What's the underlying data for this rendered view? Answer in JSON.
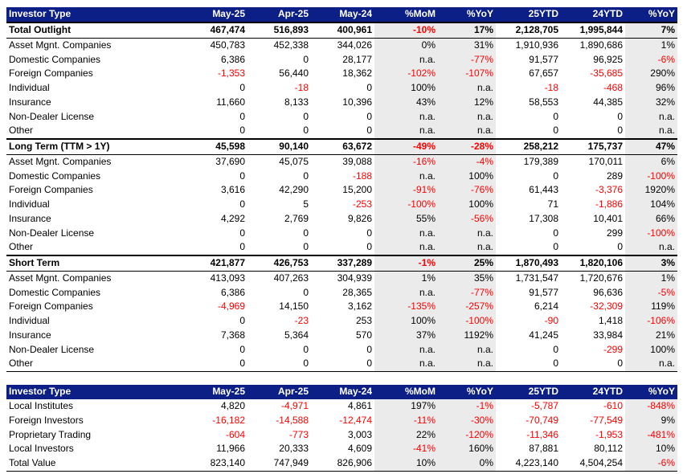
{
  "main_table": {
    "headers": [
      "Investor Type",
      "May-25",
      "Apr-25",
      "May-24",
      "%MoM",
      "%YoY",
      "25YTD",
      "24YTD",
      "%YoY"
    ],
    "rows": [
      {
        "section": true,
        "cells": [
          "Total Outlight",
          "467,474",
          "516,893",
          "400,961",
          "-10%",
          "17%",
          "2,128,705",
          "1,995,844",
          "7%"
        ]
      },
      {
        "cells": [
          "Asset Mgnt. Companies",
          "450,783",
          "452,338",
          "344,026",
          "0%",
          "31%",
          "1,910,936",
          "1,890,686",
          "1%"
        ]
      },
      {
        "cells": [
          "Domestic Companies",
          "6,386",
          "0",
          "28,177",
          "n.a.",
          "-77%",
          "91,577",
          "96,925",
          "-6%"
        ]
      },
      {
        "cells": [
          "Foreign Companies",
          "-1,353",
          "56,440",
          "18,362",
          "-102%",
          "-107%",
          "67,657",
          "-35,685",
          "290%"
        ]
      },
      {
        "cells": [
          "Individual",
          "0",
          "-18",
          "0",
          "100%",
          "n.a.",
          "-18",
          "-468",
          "96%"
        ]
      },
      {
        "cells": [
          "Insurance",
          "11,660",
          "8,133",
          "10,396",
          "43%",
          "12%",
          "58,553",
          "44,385",
          "32%"
        ]
      },
      {
        "cells": [
          "Non-Dealer License",
          "0",
          "0",
          "0",
          "n.a.",
          "n.a.",
          "0",
          "0",
          "n.a."
        ]
      },
      {
        "cells": [
          "Other",
          "0",
          "0",
          "0",
          "n.a.",
          "n.a.",
          "0",
          "0",
          "n.a."
        ]
      },
      {
        "section": true,
        "cells": [
          "Long Term (TTM > 1Y)",
          "45,598",
          "90,140",
          "63,672",
          "-49%",
          "-28%",
          "258,212",
          "175,737",
          "47%"
        ]
      },
      {
        "cells": [
          "Asset Mgnt. Companies",
          "37,690",
          "45,075",
          "39,088",
          "-16%",
          "-4%",
          "179,389",
          "170,011",
          "6%"
        ]
      },
      {
        "cells": [
          "Domestic Companies",
          "0",
          "0",
          "-188",
          "n.a.",
          "100%",
          "0",
          "289",
          "-100%"
        ]
      },
      {
        "cells": [
          "Foreign Companies",
          "3,616",
          "42,290",
          "15,200",
          "-91%",
          "-76%",
          "61,443",
          "-3,376",
          "1920%"
        ]
      },
      {
        "cells": [
          "Individual",
          "0",
          "5",
          "-253",
          "-100%",
          "100%",
          "71",
          "-1,886",
          "104%"
        ]
      },
      {
        "cells": [
          "Insurance",
          "4,292",
          "2,769",
          "9,826",
          "55%",
          "-56%",
          "17,308",
          "10,401",
          "66%"
        ]
      },
      {
        "cells": [
          "Non-Dealer License",
          "0",
          "0",
          "0",
          "n.a.",
          "n.a.",
          "0",
          "299",
          "-100%"
        ]
      },
      {
        "cells": [
          "Other",
          "0",
          "0",
          "0",
          "n.a.",
          "n.a.",
          "0",
          "0",
          "n.a."
        ]
      },
      {
        "section": true,
        "cells": [
          "Short Term",
          "421,877",
          "426,753",
          "337,289",
          "-1%",
          "25%",
          "1,870,493",
          "1,820,106",
          "3%"
        ]
      },
      {
        "cells": [
          "Asset Mgnt. Companies",
          "413,093",
          "407,263",
          "304,939",
          "1%",
          "35%",
          "1,731,547",
          "1,720,676",
          "1%"
        ]
      },
      {
        "cells": [
          "Domestic Companies",
          "6,386",
          "0",
          "28,365",
          "n.a.",
          "-77%",
          "91,577",
          "96,636",
          "-5%"
        ]
      },
      {
        "cells": [
          "Foreign Companies",
          "-4,969",
          "14,150",
          "3,162",
          "-135%",
          "-257%",
          "6,214",
          "-32,309",
          "119%"
        ]
      },
      {
        "cells": [
          "Individual",
          "0",
          "-23",
          "253",
          "100%",
          "-100%",
          "-90",
          "1,418",
          "-106%"
        ]
      },
      {
        "cells": [
          "Insurance",
          "7,368",
          "5,364",
          "570",
          "37%",
          "1192%",
          "41,245",
          "33,984",
          "21%"
        ]
      },
      {
        "cells": [
          "Non-Dealer License",
          "0",
          "0",
          "0",
          "n.a.",
          "n.a.",
          "0",
          "-299",
          "100%"
        ]
      },
      {
        "cells": [
          "Other",
          "0",
          "0",
          "0",
          "n.a.",
          "n.a.",
          "0",
          "0",
          "n.a."
        ]
      }
    ]
  },
  "flows_table": {
    "headers": [
      "Investor Type",
      "May-25",
      "Apr-25",
      "May-24",
      "%MoM",
      "%YoY",
      "25YTD",
      "24YTD",
      "%YoY"
    ],
    "rows": [
      {
        "cells": [
          "Local Institutes",
          "4,820",
          "-4,971",
          "4,861",
          "197%",
          "-1%",
          "-5,787",
          "-610",
          "-848%"
        ]
      },
      {
        "cells": [
          "Foreign Investors",
          "-16,182",
          "-14,588",
          "-12,474",
          "-11%",
          "-30%",
          "-70,749",
          "-77,549",
          "9%"
        ]
      },
      {
        "cells": [
          "Proprietary Trading",
          "-604",
          "-773",
          "3,003",
          "22%",
          "-120%",
          "-11,346",
          "-1,953",
          "-481%"
        ]
      },
      {
        "cells": [
          "Local Investors",
          "11,966",
          "20,333",
          "4,609",
          "-41%",
          "160%",
          "87,881",
          "80,112",
          "10%"
        ]
      },
      {
        "cells": [
          "Total Value",
          "823,140",
          "747,949",
          "826,906",
          "10%",
          "0%",
          "4,223,140",
          "4,504,254",
          "-6%"
        ]
      }
    ]
  },
  "colors": {
    "header_bg": "#0c1f86",
    "header_text": "#ffffff",
    "negative": "#ff0000",
    "shaded_column": "#ebebeb"
  }
}
